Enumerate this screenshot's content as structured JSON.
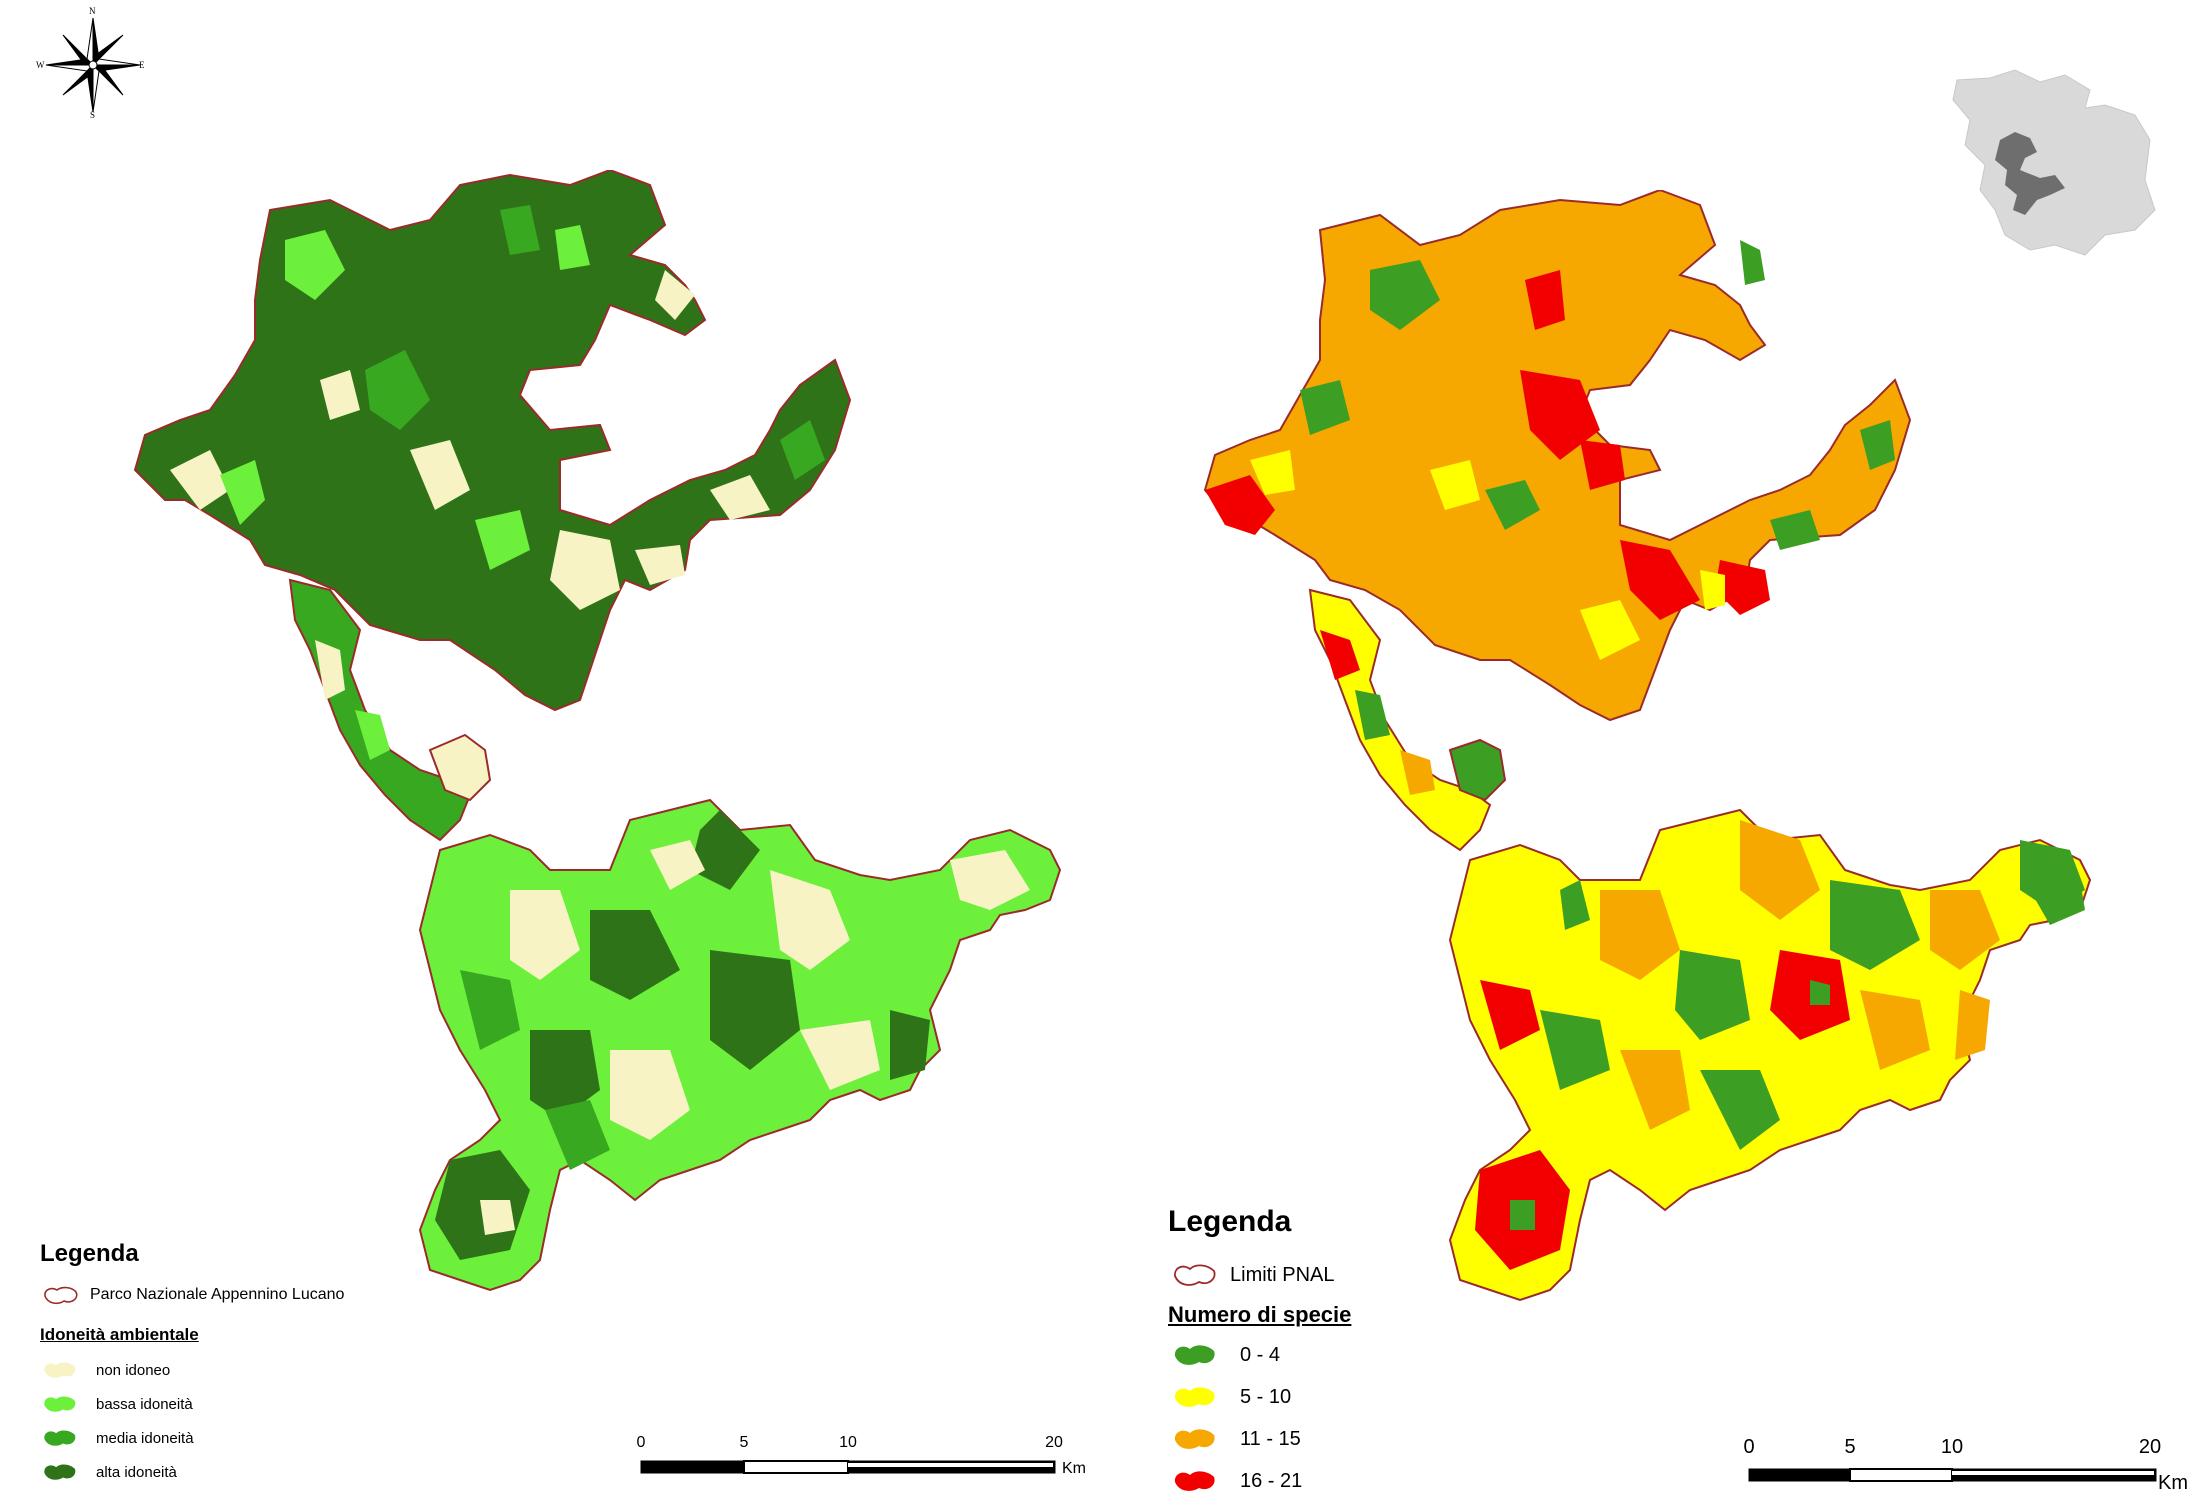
{
  "compass": {
    "n": "N",
    "s": "S",
    "e": "E",
    "w": "W",
    "icon": "compass-rose-icon"
  },
  "map_left": {
    "legend": {
      "title": "Legenda",
      "boundary_label": "Parco Nazionale Appennino Lucano",
      "subtitle": "Idoneità ambientale",
      "items": [
        {
          "label": "non idoneo",
          "color": "#F7F3C4"
        },
        {
          "label": "bassa idoneità",
          "color": "#6CF03B"
        },
        {
          "label": "media idoneità",
          "color": "#38A820"
        },
        {
          "label": "alta idoneità",
          "color": "#2F7319"
        }
      ]
    },
    "scale": {
      "ticks": [
        "0",
        "5",
        "10",
        "20"
      ],
      "unit": "Km"
    }
  },
  "map_right": {
    "legend": {
      "title": "Legenda",
      "boundary_label": "Limiti PNAL",
      "subtitle": "Numero di specie",
      "items": [
        {
          "label": "0 - 4",
          "color": "#3C9E22"
        },
        {
          "label": "5 - 10",
          "color": "#FFFF00"
        },
        {
          "label": "11 - 15",
          "color": "#F6A800"
        },
        {
          "label": "16 - 21",
          "color": "#F20000"
        }
      ]
    },
    "scale": {
      "ticks": [
        "0",
        "5",
        "10",
        "20"
      ],
      "unit": "Km"
    }
  },
  "colors": {
    "boundary": "#9B2B2B",
    "region": "#D9D9D9",
    "park_inset": "#6E6E6E"
  }
}
